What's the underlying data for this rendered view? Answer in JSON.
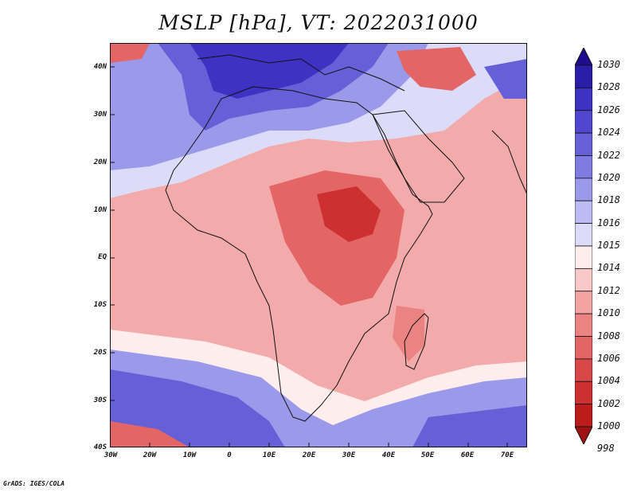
{
  "title": "MSLP [hPa], VT: 2022031000",
  "credit": "GrADS: IGES/COLA",
  "map": {
    "region": "Africa and Middle East",
    "lat_range": [
      -40,
      45
    ],
    "lon_range": [
      -30,
      75
    ],
    "lat_ticks": [
      "40N",
      "30N",
      "20N",
      "10N",
      "EQ",
      "10S",
      "20S",
      "30S",
      "40S"
    ],
    "lon_ticks": [
      "30W",
      "20W",
      "10W",
      "0",
      "10E",
      "20E",
      "30E",
      "40E",
      "50E",
      "60E",
      "70E"
    ]
  },
  "colorbar": {
    "levels": [
      "1030",
      "1028",
      "1026",
      "1024",
      "1022",
      "1020",
      "1018",
      "1016",
      "1015",
      "1014",
      "1012",
      "1010",
      "1008",
      "1006",
      "1004",
      "1002",
      "1000",
      "998"
    ],
    "colors": [
      "#1e0c8c",
      "#2a1ea8",
      "#3d32c2",
      "#5046cf",
      "#6660d8",
      "#7e7be1",
      "#9b9aea",
      "#bcbcf2",
      "#dcdcf8",
      "#fdeded",
      "#f9c8c8",
      "#f4a3a3",
      "#ec8383",
      "#e46565",
      "#d94848",
      "#cd3030",
      "#bd1c1c",
      "#a01212"
    ],
    "top_arrow_color": "#1e0c8c",
    "bottom_arrow_color": "#a01212"
  }
}
